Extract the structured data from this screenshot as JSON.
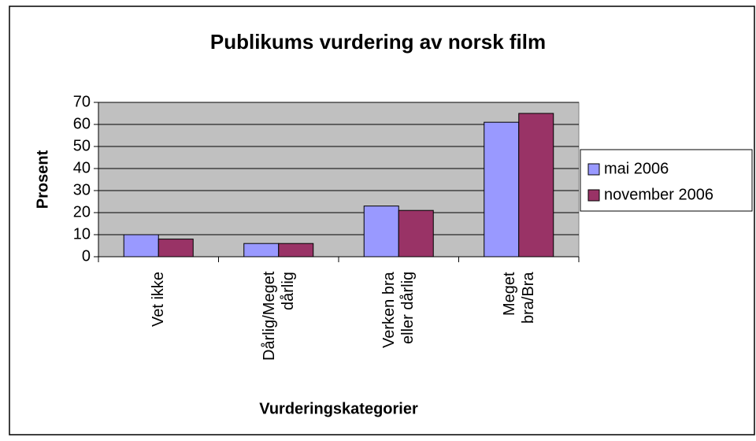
{
  "chart_data": {
    "type": "bar",
    "title": "Publikums vurdering av norsk film",
    "x_label": "Vurderingskategorier",
    "y_label": "Prosent",
    "categories": [
      "Vet ikke",
      "Dårlig/Meget\ndårlig",
      "Verken bra\neller dårlig",
      "Meget\nbra/Bra"
    ],
    "series": [
      {
        "name": "mai 2006",
        "color": "#9999ff",
        "values": [
          10,
          6,
          23,
          61
        ]
      },
      {
        "name": "november 2006",
        "color": "#993366",
        "values": [
          8,
          6,
          21,
          65
        ]
      }
    ],
    "ylim": [
      0,
      70
    ],
    "yticks": [
      0,
      10,
      20,
      30,
      40,
      50,
      60,
      70
    ],
    "grid": true,
    "legend": "right"
  }
}
